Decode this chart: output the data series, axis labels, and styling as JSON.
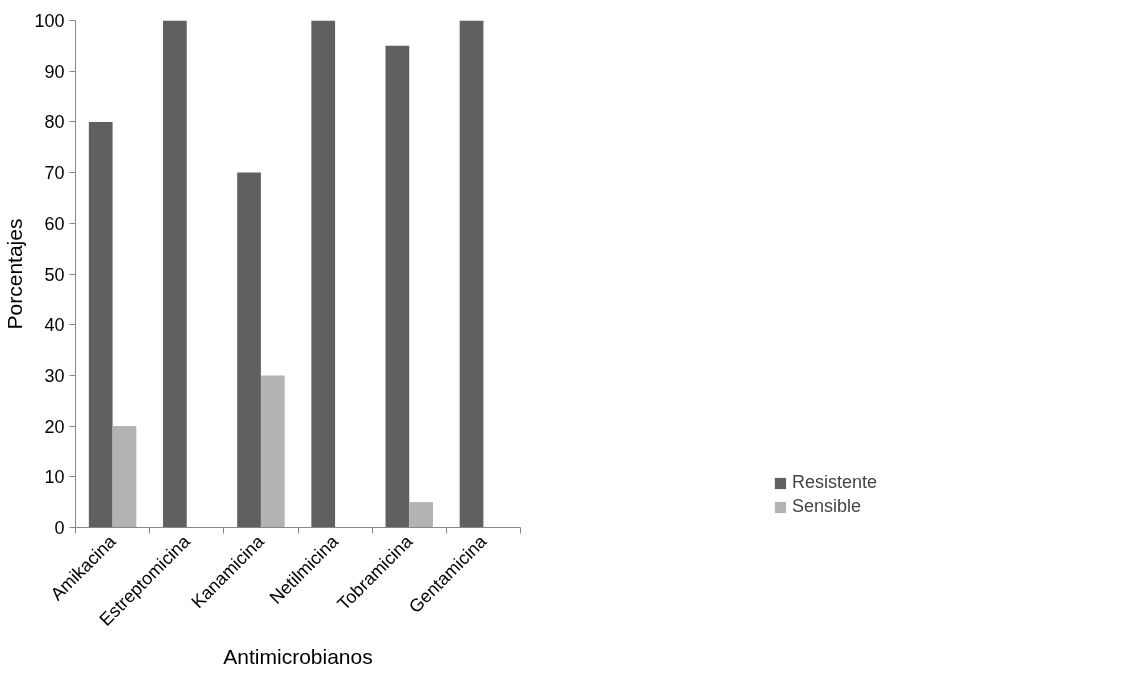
{
  "chart_data": {
    "type": "bar",
    "xlabel": "Antimicrobianos",
    "ylabel": "Porcentajes",
    "categories": [
      "Amikacina",
      "Estreptomicina",
      "Kanamicina",
      "Netilmicina",
      "Tobramicina",
      "Gentamicina"
    ],
    "series": [
      {
        "name": "Resistente",
        "color": "#606060",
        "values": [
          80,
          100,
          70,
          100,
          95,
          100
        ]
      },
      {
        "name": "Sensible",
        "color": "#b3b3b3",
        "values": [
          20,
          0,
          30,
          0,
          5,
          0
        ]
      }
    ],
    "ylim": [
      0,
      100
    ],
    "yticks": [
      0,
      10,
      20,
      30,
      40,
      50,
      60,
      70,
      80,
      90,
      100
    ],
    "grid": false,
    "legend": "bottom right"
  }
}
